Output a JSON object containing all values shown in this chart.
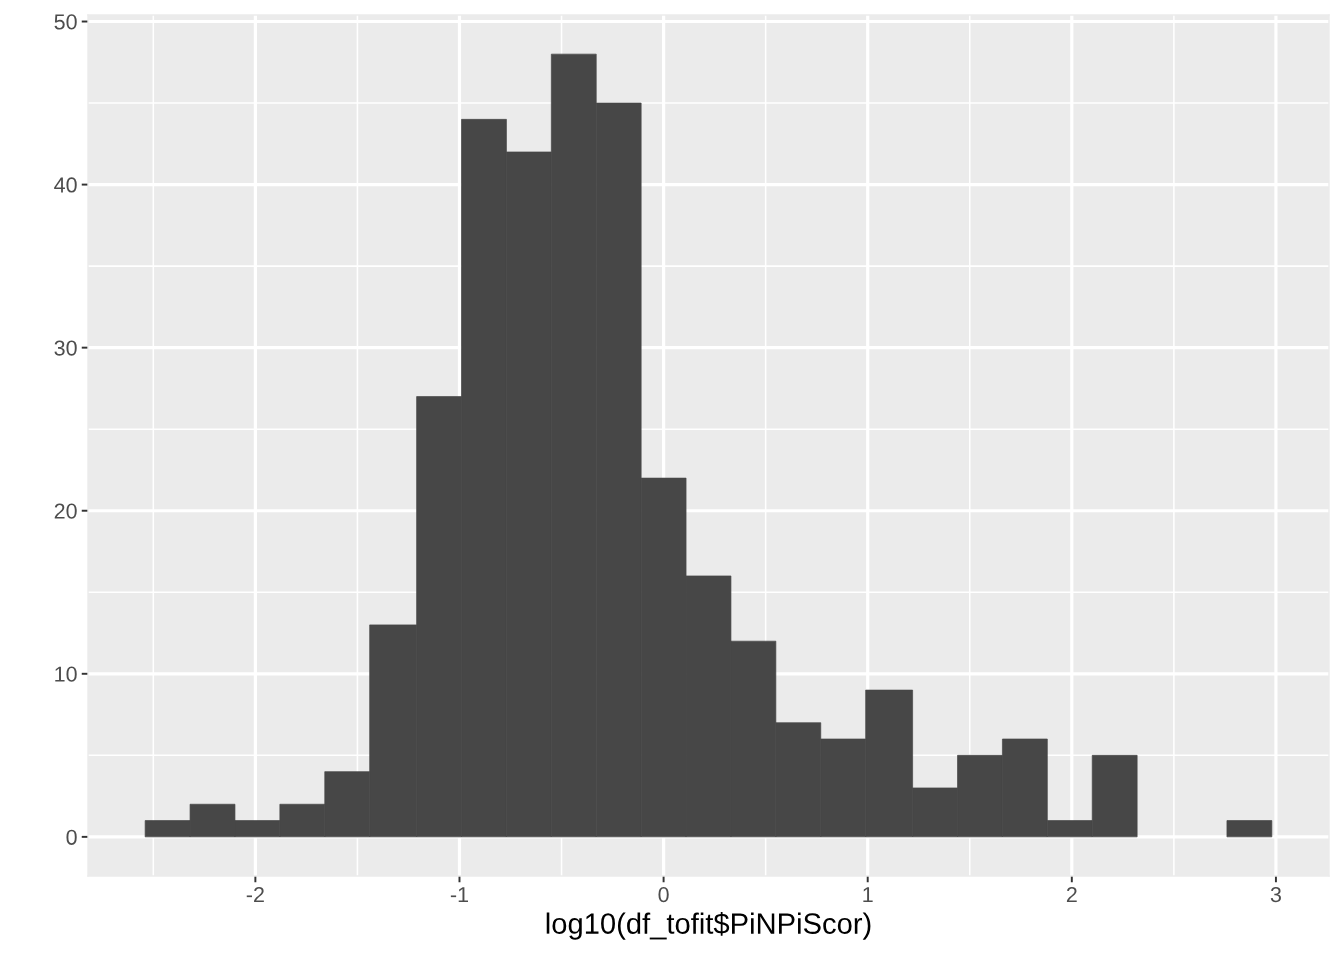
{
  "chart_data": {
    "type": "histogram",
    "xlabel": "log10(df_tofit$PiNPiScor)",
    "bins": [
      -2.54,
      -2.32,
      -2.1,
      -1.88,
      -1.66,
      -1.44,
      -1.21,
      -0.99,
      -0.77,
      -0.55,
      -0.33,
      -0.11,
      0.11,
      0.33,
      0.55,
      0.77,
      0.99,
      1.22,
      1.44,
      1.66,
      1.88,
      2.1,
      2.32,
      2.76,
      2.98
    ],
    "values": [
      1,
      2,
      1,
      2,
      4,
      13,
      27,
      44,
      42,
      48,
      45,
      22,
      16,
      12,
      7,
      6,
      9,
      3,
      5,
      6,
      1,
      5,
      0,
      1
    ],
    "color": "#474747",
    "xlim": [
      -2.82,
      3.26
    ],
    "ylim": [
      -2.4,
      50.4
    ],
    "xticks": [
      {
        "value": -2.5,
        "label": null
      },
      -2,
      {
        "value": -1.5,
        "label": null
      },
      -1,
      {
        "value": -0.5,
        "label": null
      },
      0,
      {
        "value": 0.5,
        "label": null
      },
      1,
      {
        "value": 1.5,
        "label": null
      },
      2,
      {
        "value": 2.5,
        "label": null
      },
      3
    ],
    "yticks": [
      0,
      {
        "value": 5,
        "label": null
      },
      10,
      {
        "value": 15,
        "label": null
      },
      20,
      {
        "value": 25,
        "label": null
      },
      30,
      {
        "value": 35,
        "label": null
      },
      40,
      {
        "value": 45,
        "label": null
      },
      50
    ],
    "grid": true
  }
}
